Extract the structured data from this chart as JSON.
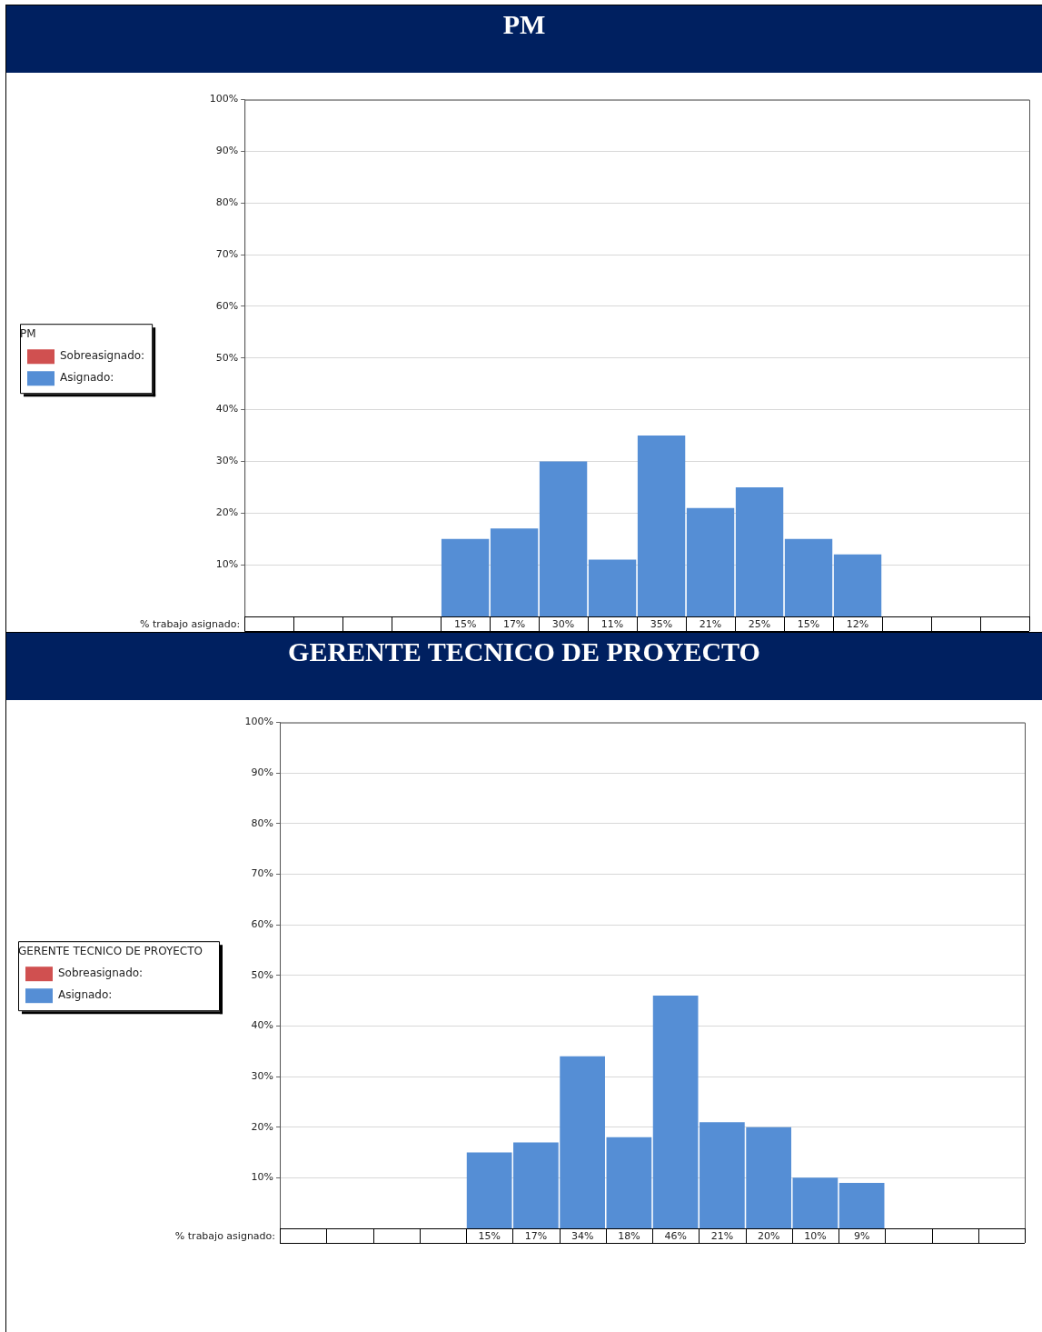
{
  "chart_data": [
    {
      "type": "bar",
      "title": "PM",
      "legend_title": "PM",
      "xlabel": "% trabajo asignado:",
      "stacked": true,
      "legend": "left",
      "grid": "y",
      "categories": [
        null,
        null,
        null,
        null,
        null,
        null,
        null,
        null,
        null,
        null,
        null,
        null,
        null,
        null,
        null,
        null
      ],
      "series": [
        {
          "name": "Asignado:",
          "color": "#558ed5",
          "values": [
            null,
            null,
            null,
            null,
            15,
            17,
            30,
            11,
            35,
            21,
            25,
            15,
            12,
            null,
            null,
            null
          ],
          "value_labels": [
            null,
            null,
            null,
            null,
            "15%",
            "17%",
            "30%",
            "11%",
            "35%",
            "21%",
            "25%",
            "15%",
            "12%",
            null,
            null,
            null
          ]
        },
        {
          "name": "Sobreasignado:",
          "color": "#d05050",
          "values": [
            null,
            null,
            null,
            null,
            null,
            null,
            null,
            null,
            null,
            null,
            null,
            null,
            null,
            null,
            null,
            null
          ]
        }
      ],
      "ylim": [
        0,
        100
      ],
      "yticks": [
        {
          "value": 10,
          "label": "10%"
        },
        {
          "value": 20,
          "label": "20%"
        },
        {
          "value": 30,
          "label": "30%"
        },
        {
          "value": 40,
          "label": "40%"
        },
        {
          "value": 50,
          "label": "50%"
        },
        {
          "value": 60,
          "label": "60%"
        },
        {
          "value": 70,
          "label": "70%"
        },
        {
          "value": 80,
          "label": "80%"
        },
        {
          "value": 90,
          "label": "90%"
        },
        {
          "value": 100,
          "label": "100%"
        }
      ]
    },
    {
      "type": "bar",
      "title": "GERENTE TECNICO DE PROYECTO",
      "legend_title": "GERENTE TECNICO DE PROYECTO",
      "xlabel": "% trabajo asignado:",
      "stacked": true,
      "legend": "left",
      "grid": "y",
      "categories": [
        null,
        null,
        null,
        null,
        null,
        null,
        null,
        null,
        null,
        null,
        null,
        null,
        null,
        null,
        null,
        null
      ],
      "series": [
        {
          "name": "Asignado:",
          "color": "#558ed5",
          "values": [
            null,
            null,
            null,
            null,
            15,
            17,
            34,
            18,
            46,
            21,
            20,
            10,
            9,
            null,
            null,
            null
          ],
          "value_labels": [
            null,
            null,
            null,
            null,
            "15%",
            "17%",
            "34%",
            "18%",
            "46%",
            "21%",
            "20%",
            "10%",
            "9%",
            null,
            null,
            null
          ]
        },
        {
          "name": "Sobreasignado:",
          "color": "#d05050",
          "values": [
            null,
            null,
            null,
            null,
            null,
            null,
            null,
            null,
            null,
            null,
            null,
            null,
            null,
            null,
            null,
            null
          ]
        }
      ],
      "ylim": [
        0,
        100
      ],
      "yticks": [
        {
          "value": 10,
          "label": "10%"
        },
        {
          "value": 20,
          "label": "20%"
        },
        {
          "value": 30,
          "label": "30%"
        },
        {
          "value": 40,
          "label": "40%"
        },
        {
          "value": 50,
          "label": "50%"
        },
        {
          "value": 60,
          "label": "60%"
        },
        {
          "value": 70,
          "label": "70%"
        },
        {
          "value": 80,
          "label": "80%"
        },
        {
          "value": 90,
          "label": "90%"
        },
        {
          "value": 100,
          "label": "100%"
        }
      ]
    }
  ]
}
